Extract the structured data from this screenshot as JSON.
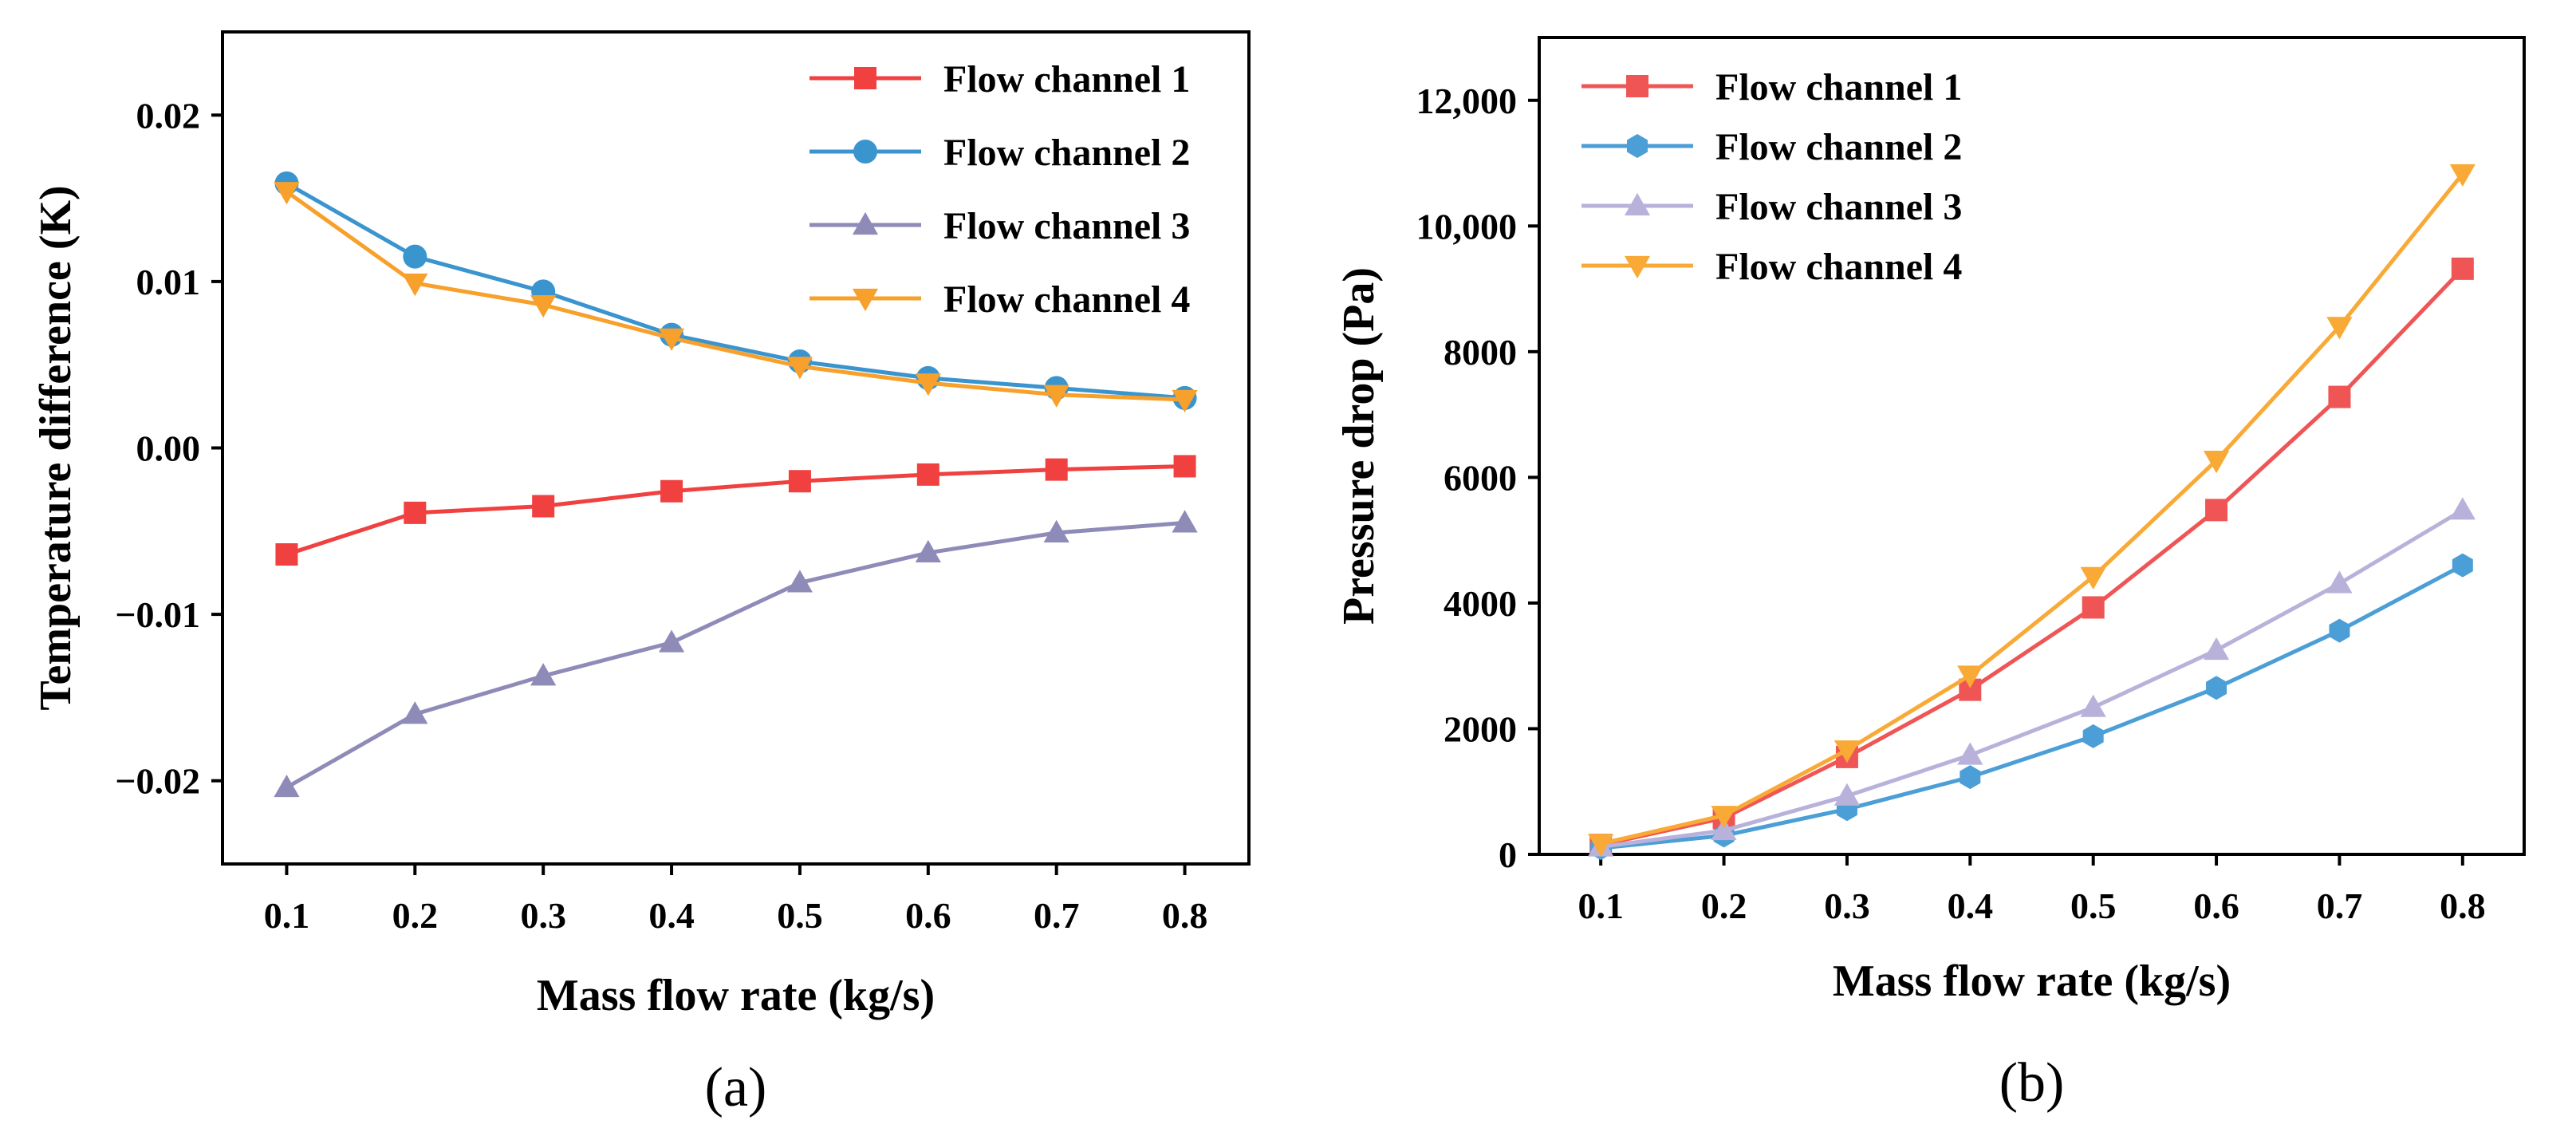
{
  "chart_data": [
    {
      "panel_label": "(a)",
      "type": "line",
      "xlabel": "Mass flow rate (kg/s)",
      "ylabel": "Temperature difference (K)",
      "x": [
        0.1,
        0.2,
        0.3,
        0.4,
        0.5,
        0.6,
        0.7,
        0.8
      ],
      "xticks": [
        "0.1",
        "0.2",
        "0.3",
        "0.4",
        "0.5",
        "0.6",
        "0.7",
        "0.8"
      ],
      "xlim": [
        0.05,
        0.85
      ],
      "ylim": [
        -0.025,
        0.025
      ],
      "yticks": [
        -0.02,
        -0.01,
        0.0,
        0.01,
        0.02
      ],
      "ytick_labels": [
        "−0.02",
        "−0.01",
        "0.00",
        "0.01",
        "0.02"
      ],
      "legend_position": "top-right",
      "series": [
        {
          "name": "Flow channel 1",
          "color": "#f04040",
          "marker": "square",
          "values": [
            -0.0064,
            -0.0039,
            -0.0035,
            -0.0026,
            -0.002,
            -0.0016,
            -0.0013,
            -0.0011
          ]
        },
        {
          "name": "Flow channel 2",
          "color": "#3a95cf",
          "marker": "circle",
          "values": [
            0.0159,
            0.0115,
            0.0094,
            0.0068,
            0.0052,
            0.0042,
            0.0036,
            0.003
          ]
        },
        {
          "name": "Flow channel 3",
          "color": "#8f8bb8",
          "marker": "triangle-up",
          "values": [
            -0.0204,
            -0.016,
            -0.0137,
            -0.0117,
            -0.0081,
            -0.0063,
            -0.0051,
            -0.0045
          ]
        },
        {
          "name": "Flow channel 4",
          "color": "#f7a02c",
          "marker": "triangle-down",
          "values": [
            0.0154,
            0.0099,
            0.0086,
            0.0066,
            0.0049,
            0.0039,
            0.0032,
            0.0029
          ]
        }
      ]
    },
    {
      "panel_label": "(b)",
      "type": "line",
      "xlabel": "Mass flow rate (kg/s)",
      "ylabel": "Pressure drop (Pa)",
      "x": [
        0.1,
        0.2,
        0.3,
        0.4,
        0.5,
        0.6,
        0.7,
        0.8
      ],
      "xticks": [
        "0.1",
        "0.2",
        "0.3",
        "0.4",
        "0.5",
        "0.6",
        "0.7",
        "0.8"
      ],
      "xlim": [
        0.05,
        0.85
      ],
      "ylim": [
        0,
        13000
      ],
      "yticks": [
        0,
        2000,
        4000,
        6000,
        8000,
        10000,
        12000
      ],
      "ytick_labels": [
        "0",
        "2000",
        "4000",
        "6000",
        "8000",
        "10,000",
        "12,000"
      ],
      "legend_position": "top-left",
      "series": [
        {
          "name": "Flow channel 1",
          "color": "#f05555",
          "marker": "square",
          "values": [
            150,
            580,
            1550,
            2620,
            3930,
            5480,
            7280,
            9320
          ]
        },
        {
          "name": "Flow channel 2",
          "color": "#4b9ed6",
          "marker": "hexagon",
          "values": [
            100,
            300,
            720,
            1230,
            1880,
            2650,
            3560,
            4600
          ]
        },
        {
          "name": "Flow channel 3",
          "color": "#b8b2db",
          "marker": "triangle-up",
          "values": [
            120,
            380,
            930,
            1580,
            2340,
            3250,
            4310,
            5480
          ]
        },
        {
          "name": "Flow channel 4",
          "color": "#f9a935",
          "marker": "triangle-down",
          "values": [
            170,
            620,
            1660,
            2850,
            4420,
            6270,
            8400,
            10830
          ]
        }
      ]
    }
  ]
}
